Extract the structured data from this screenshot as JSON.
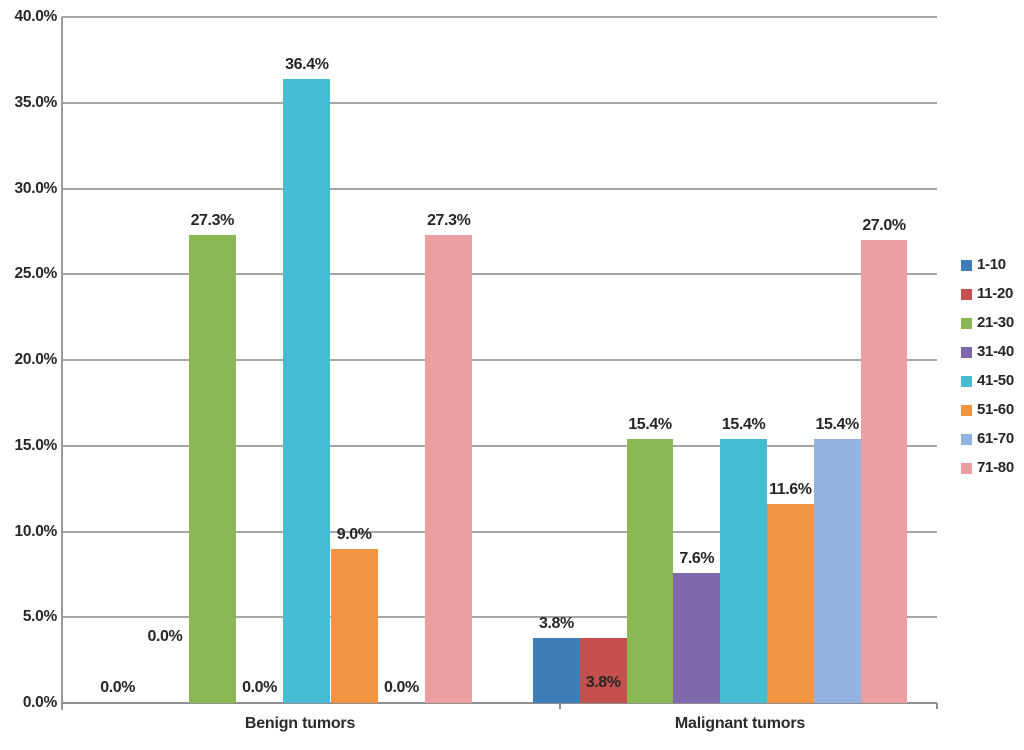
{
  "chart_data": {
    "type": "bar",
    "title": "",
    "categories": [
      "Benign tumors",
      "Malignant tumors"
    ],
    "series": [
      {
        "name": "1-10",
        "color": "#3e7cba",
        "values": [
          0.0,
          3.8
        ],
        "labels": [
          "0.0%",
          "3.8%"
        ]
      },
      {
        "name": "11-20",
        "color": "#c5504d",
        "values": [
          0.0,
          3.8
        ],
        "labels": [
          "0.0%",
          "3.8%"
        ]
      },
      {
        "name": "21-30",
        "color": "#8cb854",
        "values": [
          27.3,
          15.4
        ],
        "labels": [
          "27.3%",
          "15.4%"
        ]
      },
      {
        "name": "31-40",
        "color": "#8068ac",
        "values": [
          0.0,
          7.6
        ],
        "labels": [
          "0.0%",
          "7.6%"
        ]
      },
      {
        "name": "41-50",
        "color": "#45bcd2",
        "values": [
          36.4,
          15.4
        ],
        "labels": [
          "36.4%",
          "15.4%"
        ]
      },
      {
        "name": "51-60",
        "color": "#f29441",
        "values": [
          9.0,
          11.6
        ],
        "labels": [
          "9.0%",
          "11.6%"
        ]
      },
      {
        "name": "61-70",
        "color": "#92b2e0",
        "values": [
          0.0,
          15.4
        ],
        "labels": [
          "0.0%",
          "15.4%"
        ]
      },
      {
        "name": "71-80",
        "color": "#ec9fa3",
        "values": [
          27.3,
          27.0
        ],
        "labels": [
          "27.3%",
          "27.0%"
        ]
      }
    ],
    "label_positions": [
      [
        "base",
        "raised",
        "above",
        "base",
        "above",
        "above",
        "base",
        "above"
      ],
      [
        "above",
        "inside",
        "above",
        "above",
        "above",
        "above",
        "above",
        "above"
      ]
    ],
    "y_axis": {
      "ticks": [
        "0.0%",
        "5.0%",
        "10.0%",
        "15.0%",
        "20.0%",
        "25.0%",
        "30.0%",
        "35.0%",
        "40.0%"
      ],
      "min": 0,
      "max": 40,
      "step": 5,
      "unit": "%"
    },
    "x_axis": {
      "labels": [
        "Benign tumors",
        "Malignant tumors"
      ]
    },
    "legend": {
      "position": "right",
      "items": [
        "1-10",
        "11-20",
        "21-30",
        "31-40",
        "41-50",
        "51-60",
        "61-70",
        "71-80"
      ]
    },
    "grid": true,
    "colors": {
      "gridline": "#a6a6a6",
      "axis": "#8f8f8f",
      "text": "#262626"
    }
  }
}
